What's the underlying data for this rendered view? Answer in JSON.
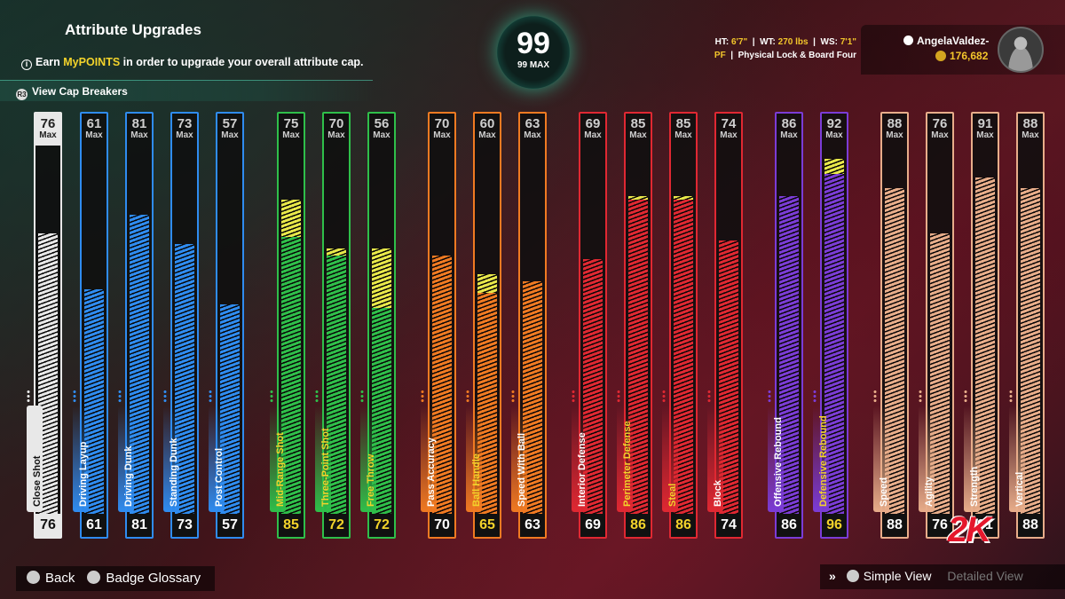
{
  "header": {
    "title": "Attribute Upgrades",
    "subtitle_prefix": "Earn ",
    "subtitle_highlight": "MyPOINTS",
    "subtitle_suffix": " in order to upgrade your overall attribute cap.",
    "cap_breakers": "View Cap Breakers"
  },
  "overall": {
    "value": "99",
    "max_label": "99 MAX"
  },
  "bio": {
    "ht_label": "HT:",
    "ht": "6'7\"",
    "wt_label": "WT:",
    "wt": "270 lbs",
    "ws_label": "WS:",
    "ws": "7'1\"",
    "position": "PF",
    "archetype": "Physical Lock & Board Four"
  },
  "profile": {
    "name": "AngelaValdez-",
    "vc": "176,682"
  },
  "max_word": "Max",
  "colors": {
    "white": "#e8e8e8",
    "blue": "#2f8cf0",
    "green": "#2fbf4a",
    "orange": "#f07a22",
    "red": "#e02832",
    "purple": "#7b3cd6",
    "tan": "#e8ad8a",
    "upgrade": "#e8e84a"
  },
  "attributes": [
    {
      "name": "Close Shot",
      "cap": "76",
      "current": "76",
      "base": 76,
      "group": "white",
      "current_color": "#ffffff"
    },
    {
      "name": "Driving Layup",
      "cap": "61",
      "current": "61",
      "base": 61,
      "group": "blue",
      "current_color": "#ffffff"
    },
    {
      "name": "Driving Dunk",
      "cap": "81",
      "current": "81",
      "base": 81,
      "group": "blue",
      "current_color": "#ffffff"
    },
    {
      "name": "Standing Dunk",
      "cap": "73",
      "current": "73",
      "base": 73,
      "group": "blue",
      "current_color": "#ffffff"
    },
    {
      "name": "Post Control",
      "cap": "57",
      "current": "57",
      "base": 57,
      "group": "blue",
      "current_color": "#ffffff"
    },
    {
      "name": "Mid-Range Shot",
      "cap": "75",
      "current": "85",
      "base": 75,
      "group": "green",
      "current_color": "#f3d32b"
    },
    {
      "name": "Three-Point Shot",
      "cap": "70",
      "current": "72",
      "base": 70,
      "group": "green",
      "current_color": "#f3d32b"
    },
    {
      "name": "Free Throw",
      "cap": "56",
      "current": "72",
      "base": 56,
      "group": "green",
      "current_color": "#f3d32b"
    },
    {
      "name": "Pass Accuracy",
      "cap": "70",
      "current": "70",
      "base": 70,
      "group": "orange",
      "current_color": "#ffffff"
    },
    {
      "name": "Ball Handle",
      "cap": "60",
      "current": "65",
      "base": 60,
      "group": "orange",
      "current_color": "#f3d32b"
    },
    {
      "name": "Speed With Ball",
      "cap": "63",
      "current": "63",
      "base": 63,
      "group": "orange",
      "current_color": "#ffffff"
    },
    {
      "name": "Interior Defense",
      "cap": "69",
      "current": "69",
      "base": 69,
      "group": "red",
      "current_color": "#ffffff"
    },
    {
      "name": "Perimeter Defense",
      "cap": "85",
      "current": "86",
      "base": 85,
      "group": "red",
      "current_color": "#f3d32b"
    },
    {
      "name": "Steal",
      "cap": "85",
      "current": "86",
      "base": 85,
      "group": "red",
      "current_color": "#f3d32b"
    },
    {
      "name": "Block",
      "cap": "74",
      "current": "74",
      "base": 74,
      "group": "red",
      "current_color": "#ffffff"
    },
    {
      "name": "Offensive Rebound",
      "cap": "86",
      "current": "86",
      "base": 86,
      "group": "purple",
      "current_color": "#ffffff"
    },
    {
      "name": "Defensive Rebound",
      "cap": "92",
      "current": "96",
      "base": 92,
      "group": "purple",
      "current_color": "#f3d32b"
    },
    {
      "name": "Speed",
      "cap": "88",
      "current": "88",
      "base": 88,
      "group": "tan",
      "current_color": "#ffffff"
    },
    {
      "name": "Agility",
      "cap": "76",
      "current": "76",
      "base": 76,
      "group": "tan",
      "current_color": "#ffffff"
    },
    {
      "name": "Strength",
      "cap": "91",
      "current": "91",
      "base": 91,
      "group": "tan",
      "current_color": "#ffffff"
    },
    {
      "name": "Vertical",
      "cap": "88",
      "current": "88",
      "base": 88,
      "group": "tan",
      "current_color": "#ffffff"
    }
  ],
  "footer": {
    "back": "Back",
    "glossary": "Badge Glossary",
    "simple_view": "Simple View",
    "detailed_view": "Detailed View"
  },
  "logo": "2K"
}
